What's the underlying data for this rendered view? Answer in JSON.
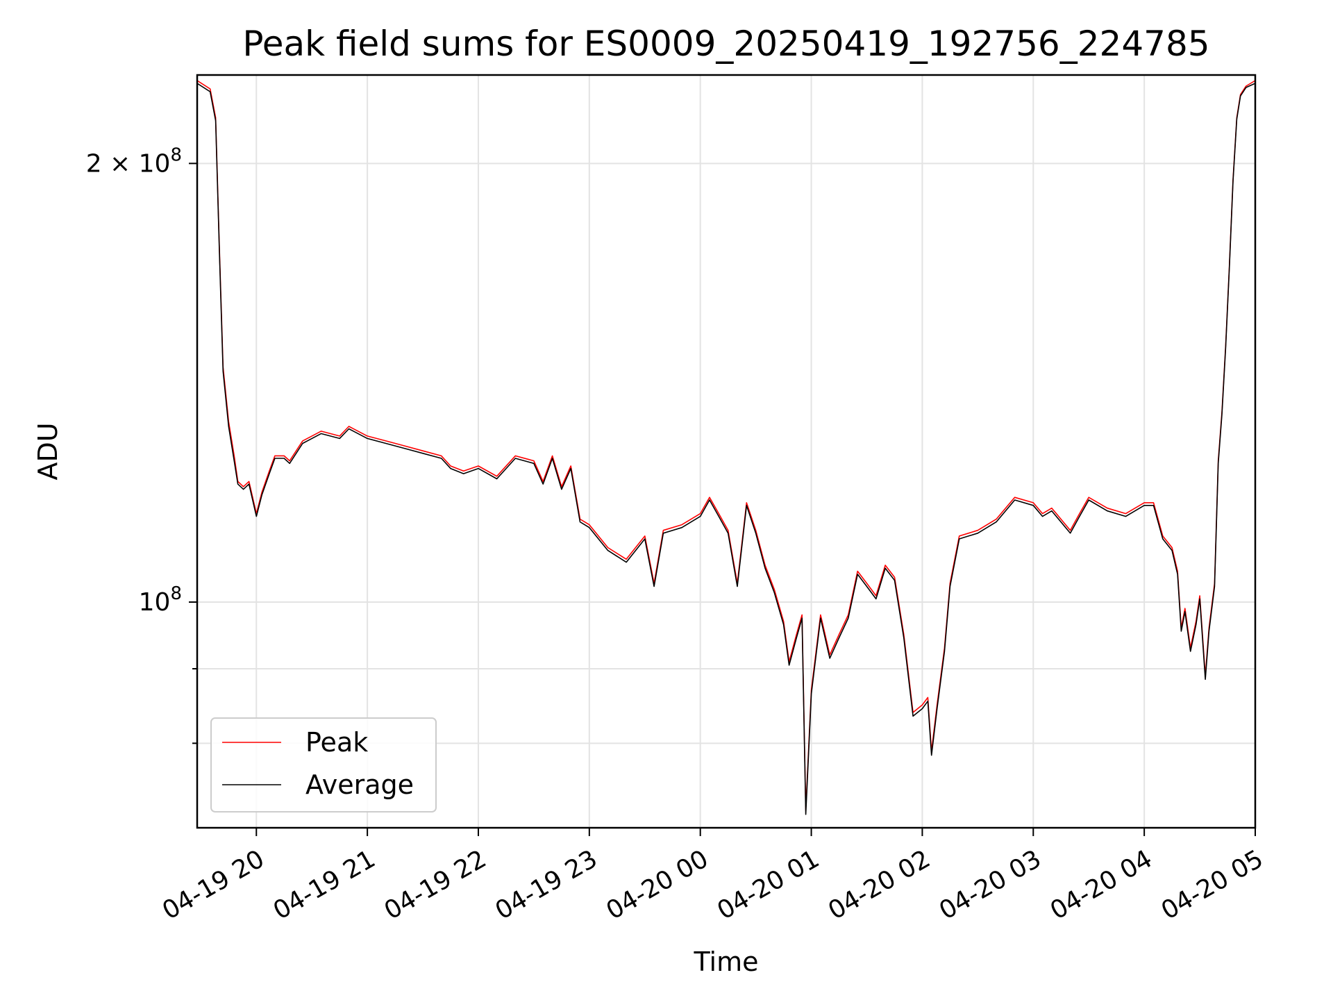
{
  "chart_data": {
    "type": "line",
    "title": "Peak field sums for ES0009_20250419_192756_224785",
    "xlabel": "Time",
    "ylabel": "ADU",
    "yscale": "log",
    "grid": true,
    "legend_position": "lower-left",
    "xlim": [
      "2025-04-19 19:28",
      "2025-04-20 05:00"
    ],
    "ylim": [
      70000000,
      230000000
    ],
    "x_ticks": [
      {
        "value": "2025-04-19 20:00",
        "label": "04-19 20"
      },
      {
        "value": "2025-04-19 21:00",
        "label": "04-19 21"
      },
      {
        "value": "2025-04-19 22:00",
        "label": "04-19 22"
      },
      {
        "value": "2025-04-19 23:00",
        "label": "04-19 23"
      },
      {
        "value": "2025-04-20 00:00",
        "label": "04-20 00"
      },
      {
        "value": "2025-04-20 01:00",
        "label": "04-20 01"
      },
      {
        "value": "2025-04-20 02:00",
        "label": "04-20 02"
      },
      {
        "value": "2025-04-20 03:00",
        "label": "04-20 03"
      },
      {
        "value": "2025-04-20 04:00",
        "label": "04-20 04"
      },
      {
        "value": "2025-04-20 05:00",
        "label": "04-20 05"
      }
    ],
    "y_ticks_major": [
      {
        "value": 100000000,
        "label_base": "10",
        "label_exp": "8"
      },
      {
        "value": 200000000,
        "label_base": "2 × 10",
        "label_exp": "8"
      }
    ],
    "y_ticks_minor": [
      80000000,
      90000000
    ],
    "series": [
      {
        "name": "Peak",
        "color": "#ff0000",
        "x": [
          "2025-04-19 19:28",
          "2025-04-19 19:35",
          "2025-04-19 19:38",
          "2025-04-19 19:40",
          "2025-04-19 19:42",
          "2025-04-19 19:45",
          "2025-04-19 19:48",
          "2025-04-19 19:50",
          "2025-04-19 19:53",
          "2025-04-19 19:56",
          "2025-04-19 20:00",
          "2025-04-19 20:03",
          "2025-04-19 20:07",
          "2025-04-19 20:10",
          "2025-04-19 20:15",
          "2025-04-19 20:18",
          "2025-04-19 20:25",
          "2025-04-19 20:35",
          "2025-04-19 20:45",
          "2025-04-19 20:50",
          "2025-04-19 21:00",
          "2025-04-19 21:10",
          "2025-04-19 21:20",
          "2025-04-19 21:30",
          "2025-04-19 21:40",
          "2025-04-19 21:45",
          "2025-04-19 21:52",
          "2025-04-19 22:00",
          "2025-04-19 22:10",
          "2025-04-19 22:20",
          "2025-04-19 22:30",
          "2025-04-19 22:35",
          "2025-04-19 22:40",
          "2025-04-19 22:45",
          "2025-04-19 22:50",
          "2025-04-19 22:55",
          "2025-04-19 23:00",
          "2025-04-19 23:10",
          "2025-04-19 23:20",
          "2025-04-19 23:30",
          "2025-04-19 23:35",
          "2025-04-19 23:40",
          "2025-04-19 23:50",
          "2025-04-20 00:00",
          "2025-04-20 00:05",
          "2025-04-20 00:10",
          "2025-04-20 00:15",
          "2025-04-20 00:20",
          "2025-04-20 00:25",
          "2025-04-20 00:30",
          "2025-04-20 00:35",
          "2025-04-20 00:40",
          "2025-04-20 00:45",
          "2025-04-20 00:48",
          "2025-04-20 00:52",
          "2025-04-20 00:55",
          "2025-04-20 00:57",
          "2025-04-20 01:00",
          "2025-04-20 01:05",
          "2025-04-20 01:10",
          "2025-04-20 01:15",
          "2025-04-20 01:20",
          "2025-04-20 01:25",
          "2025-04-20 01:30",
          "2025-04-20 01:35",
          "2025-04-20 01:40",
          "2025-04-20 01:45",
          "2025-04-20 01:50",
          "2025-04-20 01:55",
          "2025-04-20 02:00",
          "2025-04-20 02:03",
          "2025-04-20 02:05",
          "2025-04-20 02:08",
          "2025-04-20 02:12",
          "2025-04-20 02:15",
          "2025-04-20 02:20",
          "2025-04-20 02:30",
          "2025-04-20 02:40",
          "2025-04-20 02:50",
          "2025-04-20 03:00",
          "2025-04-20 03:05",
          "2025-04-20 03:10",
          "2025-04-20 03:20",
          "2025-04-20 03:25",
          "2025-04-20 03:30",
          "2025-04-20 03:40",
          "2025-04-20 03:50",
          "2025-04-20 04:00",
          "2025-04-20 04:05",
          "2025-04-20 04:10",
          "2025-04-20 04:15",
          "2025-04-20 04:18",
          "2025-04-20 04:20",
          "2025-04-20 04:22",
          "2025-04-20 04:25",
          "2025-04-20 04:28",
          "2025-04-20 04:30",
          "2025-04-20 04:33",
          "2025-04-20 04:35",
          "2025-04-20 04:38",
          "2025-04-20 04:40",
          "2025-04-20 04:42",
          "2025-04-20 04:44",
          "2025-04-20 04:46",
          "2025-04-20 04:48",
          "2025-04-20 04:50",
          "2025-04-20 04:52",
          "2025-04-20 04:55",
          "2025-04-20 05:00"
        ],
        "values": [
          228000000,
          225000000,
          215000000,
          175000000,
          145000000,
          133000000,
          126000000,
          121000000,
          120000000,
          121000000,
          115000000,
          119000000,
          123000000,
          126000000,
          126000000,
          125000000,
          129000000,
          131000000,
          130000000,
          132000000,
          130000000,
          129000000,
          128000000,
          127000000,
          126000000,
          124000000,
          123000000,
          124000000,
          122000000,
          126000000,
          125000000,
          121000000,
          126000000,
          120000000,
          124000000,
          114000000,
          113000000,
          109000000,
          107000000,
          111000000,
          103000000,
          112000000,
          113000000,
          115000000,
          118000000,
          115000000,
          112000000,
          103000000,
          117000000,
          112000000,
          106000000,
          102000000,
          97000000,
          91000000,
          95000000,
          98000000,
          72000000,
          87000000,
          98000000,
          92000000,
          95000000,
          98000000,
          105000000,
          103000000,
          101000000,
          106000000,
          104000000,
          95000000,
          84000000,
          85000000,
          86000000,
          79000000,
          85000000,
          93000000,
          103000000,
          111000000,
          112000000,
          114000000,
          118000000,
          117000000,
          115000000,
          116000000,
          112000000,
          115000000,
          118000000,
          116000000,
          115000000,
          117000000,
          117000000,
          111000000,
          109000000,
          105000000,
          96000000,
          99000000,
          93000000,
          97000000,
          101000000,
          89000000,
          96000000,
          103000000,
          125000000,
          135000000,
          150000000,
          170000000,
          195000000,
          215000000,
          223000000,
          226000000,
          228000000
        ]
      },
      {
        "name": "Average",
        "color": "#000000",
        "x": [
          "2025-04-19 19:28",
          "2025-04-19 19:35",
          "2025-04-19 19:38",
          "2025-04-19 19:40",
          "2025-04-19 19:42",
          "2025-04-19 19:45",
          "2025-04-19 19:48",
          "2025-04-19 19:50",
          "2025-04-19 19:53",
          "2025-04-19 19:56",
          "2025-04-19 20:00",
          "2025-04-19 20:03",
          "2025-04-19 20:07",
          "2025-04-19 20:10",
          "2025-04-19 20:15",
          "2025-04-19 20:18",
          "2025-04-19 20:25",
          "2025-04-19 20:35",
          "2025-04-19 20:45",
          "2025-04-19 20:50",
          "2025-04-19 21:00",
          "2025-04-19 21:10",
          "2025-04-19 21:20",
          "2025-04-19 21:30",
          "2025-04-19 21:40",
          "2025-04-19 21:45",
          "2025-04-19 21:52",
          "2025-04-19 22:00",
          "2025-04-19 22:10",
          "2025-04-19 22:20",
          "2025-04-19 22:30",
          "2025-04-19 22:35",
          "2025-04-19 22:40",
          "2025-04-19 22:45",
          "2025-04-19 22:50",
          "2025-04-19 22:55",
          "2025-04-19 23:00",
          "2025-04-19 23:10",
          "2025-04-19 23:20",
          "2025-04-19 23:30",
          "2025-04-19 23:35",
          "2025-04-19 23:40",
          "2025-04-19 23:50",
          "2025-04-20 00:00",
          "2025-04-20 00:05",
          "2025-04-20 00:10",
          "2025-04-20 00:15",
          "2025-04-20 00:20",
          "2025-04-20 00:25",
          "2025-04-20 00:30",
          "2025-04-20 00:35",
          "2025-04-20 00:40",
          "2025-04-20 00:45",
          "2025-04-20 00:48",
          "2025-04-20 00:52",
          "2025-04-20 00:55",
          "2025-04-20 00:57",
          "2025-04-20 01:00",
          "2025-04-20 01:05",
          "2025-04-20 01:10",
          "2025-04-20 01:15",
          "2025-04-20 01:20",
          "2025-04-20 01:25",
          "2025-04-20 01:30",
          "2025-04-20 01:35",
          "2025-04-20 01:40",
          "2025-04-20 01:45",
          "2025-04-20 01:50",
          "2025-04-20 01:55",
          "2025-04-20 02:00",
          "2025-04-20 02:03",
          "2025-04-20 02:05",
          "2025-04-20 02:08",
          "2025-04-20 02:12",
          "2025-04-20 02:15",
          "2025-04-20 02:20",
          "2025-04-20 02:30",
          "2025-04-20 02:40",
          "2025-04-20 02:50",
          "2025-04-20 03:00",
          "2025-04-20 03:05",
          "2025-04-20 03:10",
          "2025-04-20 03:20",
          "2025-04-20 03:25",
          "2025-04-20 03:30",
          "2025-04-20 03:40",
          "2025-04-20 03:50",
          "2025-04-20 04:00",
          "2025-04-20 04:05",
          "2025-04-20 04:10",
          "2025-04-20 04:15",
          "2025-04-20 04:18",
          "2025-04-20 04:20",
          "2025-04-20 04:22",
          "2025-04-20 04:25",
          "2025-04-20 04:28",
          "2025-04-20 04:30",
          "2025-04-20 04:33",
          "2025-04-20 04:35",
          "2025-04-20 04:38",
          "2025-04-20 04:40",
          "2025-04-20 04:42",
          "2025-04-20 04:44",
          "2025-04-20 04:46",
          "2025-04-20 04:48",
          "2025-04-20 04:50",
          "2025-04-20 04:52",
          "2025-04-20 04:55",
          "2025-04-20 05:00"
        ],
        "values": [
          227000000,
          224000000,
          214000000,
          174000000,
          144000000,
          132000000,
          125000000,
          120500000,
          119500000,
          120500000,
          114500000,
          118500000,
          122500000,
          125500000,
          125500000,
          124500000,
          128500000,
          130500000,
          129500000,
          131500000,
          129500000,
          128500000,
          127500000,
          126500000,
          125500000,
          123500000,
          122500000,
          123500000,
          121500000,
          125500000,
          124500000,
          120500000,
          125500000,
          119500000,
          123500000,
          113500000,
          112500000,
          108500000,
          106500000,
          110500000,
          102500000,
          111500000,
          112500000,
          114500000,
          117500000,
          114500000,
          111500000,
          102500000,
          116500000,
          111500000,
          105500000,
          101500000,
          96500000,
          90500000,
          94500000,
          97500000,
          71500000,
          86500000,
          97500000,
          91500000,
          94500000,
          97500000,
          104500000,
          102500000,
          100500000,
          105500000,
          103500000,
          94500000,
          83500000,
          84500000,
          85500000,
          78500000,
          84500000,
          92500000,
          102500000,
          110500000,
          111500000,
          113500000,
          117500000,
          116500000,
          114500000,
          115500000,
          111500000,
          114500000,
          117500000,
          115500000,
          114500000,
          116500000,
          116500000,
          110500000,
          108500000,
          104500000,
          95500000,
          98500000,
          92500000,
          96500000,
          100500000,
          88500000,
          95500000,
          102500000,
          124500000,
          134500000,
          149500000,
          169500000,
          194500000,
          214500000,
          222500000,
          225500000,
          227000000
        ]
      }
    ]
  }
}
